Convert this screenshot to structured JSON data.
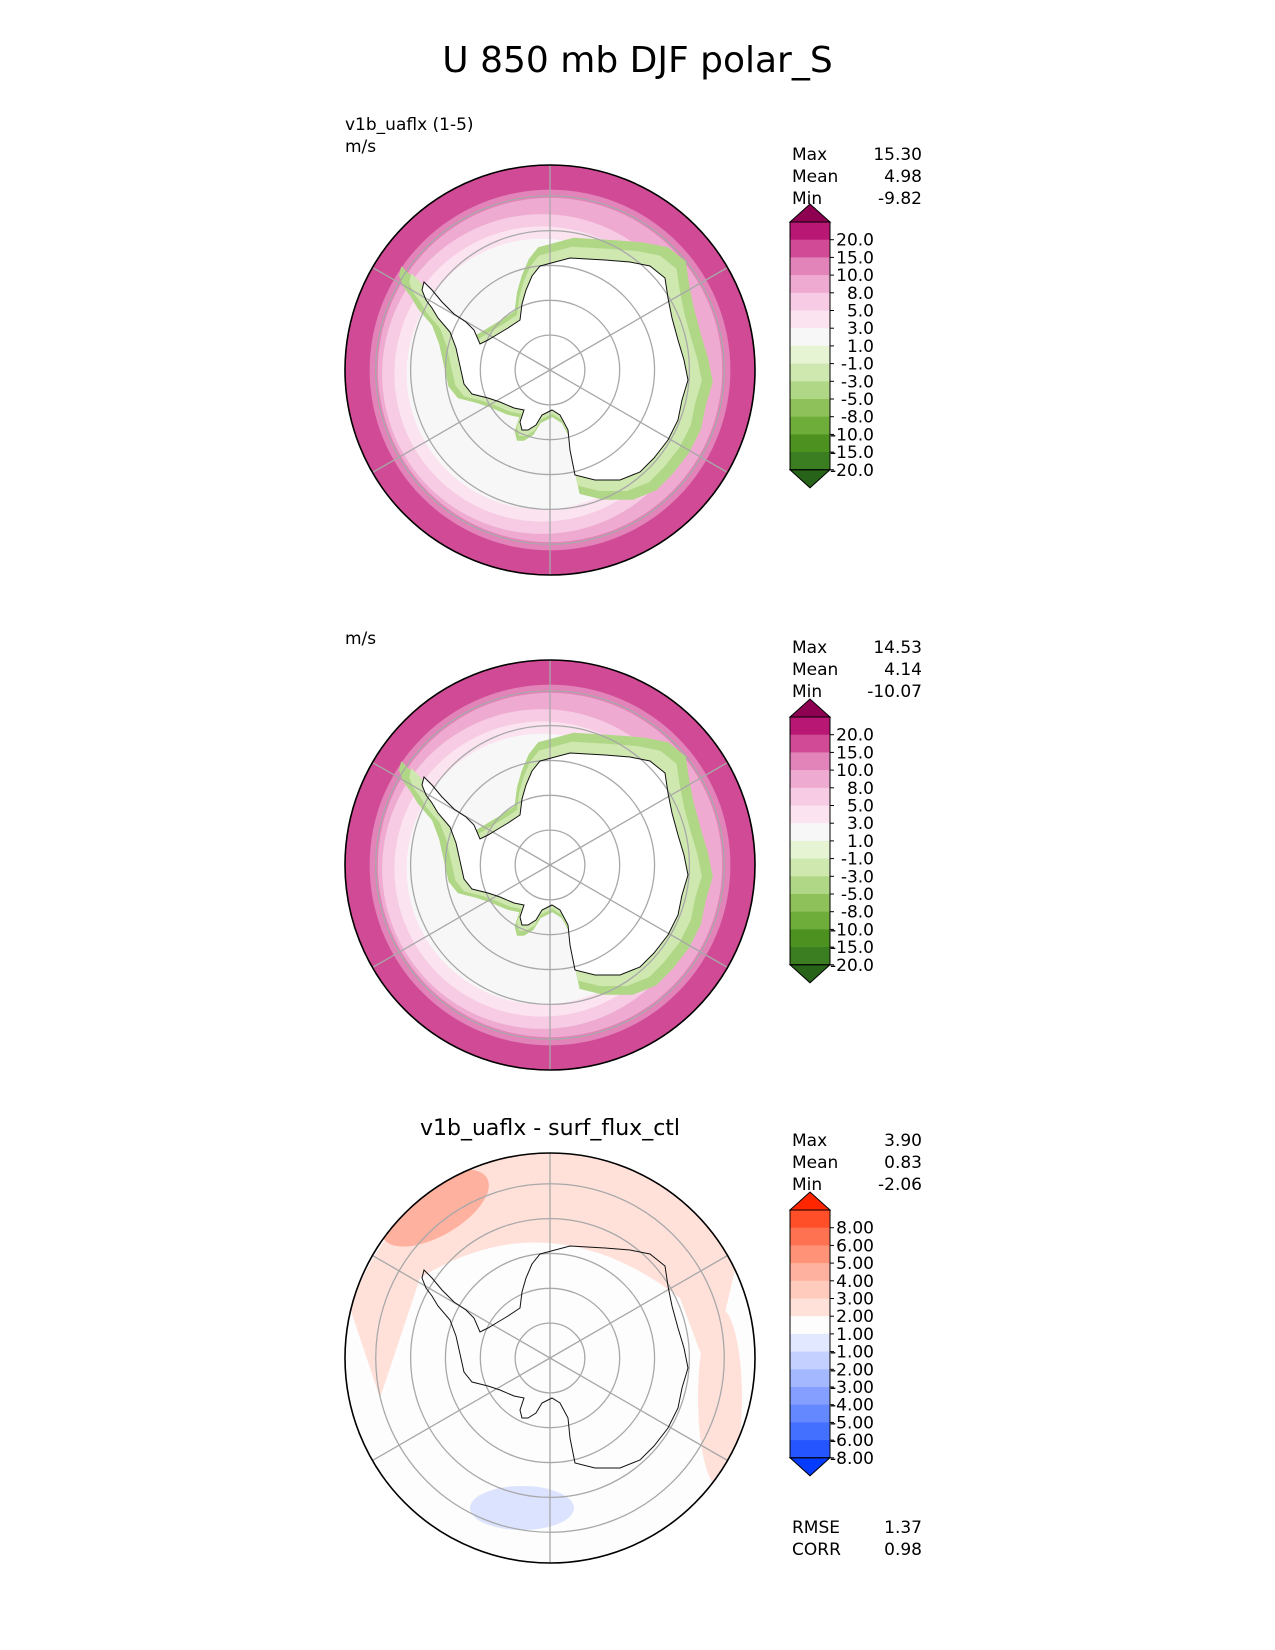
{
  "title": "U 850 mb DJF polar_S",
  "panels": [
    {
      "subtitle": "v1b_uaflx (1-5)",
      "units": "m/s",
      "stats": [
        {
          "label": "Max",
          "value": "15.30"
        },
        {
          "label": "Mean",
          "value": "4.98"
        },
        {
          "label": "Min",
          "value": "-9.82"
        }
      ],
      "colorbar_levels": [
        "20.0",
        "15.0",
        "10.0",
        "8.0",
        "5.0",
        "3.0",
        "1.0",
        "-1.0",
        "-3.0",
        "-5.0",
        "-8.0",
        "-10.0",
        "-15.0",
        "-20.0"
      ]
    },
    {
      "subtitle": "",
      "units": "m/s",
      "stats": [
        {
          "label": "Max",
          "value": "14.53"
        },
        {
          "label": "Mean",
          "value": "4.14"
        },
        {
          "label": "Min",
          "value": "-10.07"
        }
      ],
      "colorbar_levels": [
        "20.0",
        "15.0",
        "10.0",
        "8.0",
        "5.0",
        "3.0",
        "1.0",
        "-1.0",
        "-3.0",
        "-5.0",
        "-8.0",
        "-10.0",
        "-15.0",
        "-20.0"
      ]
    },
    {
      "subtitle": "v1b_uaflx - surf_flux_ctl",
      "units": "",
      "stats": [
        {
          "label": "Max",
          "value": "3.90"
        },
        {
          "label": "Mean",
          "value": "0.83"
        },
        {
          "label": "Min",
          "value": "-2.06"
        }
      ],
      "colorbar_levels": [
        "8.00",
        "6.00",
        "5.00",
        "4.00",
        "3.00",
        "2.00",
        "1.00",
        "-1.00",
        "-2.00",
        "-3.00",
        "-4.00",
        "-5.00",
        "-6.00",
        "-8.00"
      ],
      "metrics": [
        {
          "label": "RMSE",
          "value": "1.37"
        },
        {
          "label": "CORR",
          "value": "0.98"
        }
      ]
    }
  ],
  "chart_data": [
    {
      "type": "heatmap",
      "projection": "south-polar-stereographic",
      "title": "v1b_uaflx (1-5)",
      "units": "m/s",
      "levels": [
        -20,
        -15,
        -10,
        -8,
        -5,
        -3,
        -1,
        1,
        3,
        5,
        8,
        10,
        15,
        20
      ],
      "colorbar_extend": "both",
      "colors": [
        "#276419",
        "#3b7d21",
        "#4d9221",
        "#6fad3b",
        "#8fc15a",
        "#b0d786",
        "#cfe8b0",
        "#e6f4d4",
        "#f7f7f7",
        "#fbe3f0",
        "#f6cbe3",
        "#eeaad0",
        "#e283b9",
        "#d04a95",
        "#b81773",
        "#8e0152"
      ],
      "max": 15.3,
      "mean": 4.98,
      "min": -9.82
    },
    {
      "type": "heatmap",
      "projection": "south-polar-stereographic",
      "title": "",
      "units": "m/s",
      "levels": [
        -20,
        -15,
        -10,
        -8,
        -5,
        -3,
        -1,
        1,
        3,
        5,
        8,
        10,
        15,
        20
      ],
      "colorbar_extend": "both",
      "colors": [
        "#276419",
        "#3b7d21",
        "#4d9221",
        "#6fad3b",
        "#8fc15a",
        "#b0d786",
        "#cfe8b0",
        "#e6f4d4",
        "#f7f7f7",
        "#fbe3f0",
        "#f6cbe3",
        "#eeaad0",
        "#e283b9",
        "#d04a95",
        "#b81773",
        "#8e0152"
      ],
      "max": 14.53,
      "mean": 4.14,
      "min": -10.07
    },
    {
      "type": "heatmap",
      "projection": "south-polar-stereographic",
      "title": "v1b_uaflx - surf_flux_ctl",
      "units": "",
      "levels": [
        -8,
        -6,
        -5,
        -4,
        -3,
        -2,
        -1,
        1,
        2,
        3,
        4,
        5,
        6,
        8
      ],
      "colorbar_extend": "both",
      "colors": [
        "#053aff",
        "#2555ff",
        "#4470ff",
        "#6388ff",
        "#849fff",
        "#a4b8ff",
        "#c4d0ff",
        "#e2e8ff",
        "#fdfdfd",
        "#ffe1da",
        "#ffcbbd",
        "#ffb19f",
        "#ff9277",
        "#ff7251",
        "#ff4f28",
        "#ff2600"
      ],
      "max": 3.9,
      "mean": 0.83,
      "min": -2.06,
      "rmse": 1.37,
      "corr": 0.98
    }
  ]
}
